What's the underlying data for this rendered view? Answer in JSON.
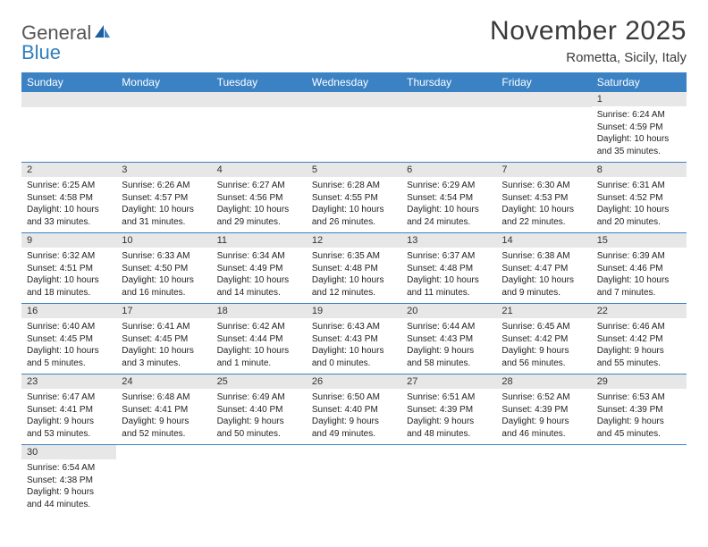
{
  "logo": {
    "text1": "General",
    "text2": "Blue"
  },
  "title": "November 2025",
  "location": "Rometta, Sicily, Italy",
  "colors": {
    "header_bg": "#3b82c4",
    "header_text": "#ffffff",
    "daynum_bg": "#e7e7e7",
    "row_divider": "#3b82c4",
    "logo_blue": "#2f7fbf",
    "logo_gray": "#555555",
    "text": "#222222",
    "background": "#ffffff"
  },
  "typography": {
    "title_fontsize": 30,
    "location_fontsize": 15,
    "header_fontsize": 12,
    "daynum_fontsize": 11,
    "detail_fontsize": 10
  },
  "days_of_week": [
    "Sunday",
    "Monday",
    "Tuesday",
    "Wednesday",
    "Thursday",
    "Friday",
    "Saturday"
  ],
  "weeks": [
    [
      null,
      null,
      null,
      null,
      null,
      null,
      {
        "n": "1",
        "sunrise": "Sunrise: 6:24 AM",
        "sunset": "Sunset: 4:59 PM",
        "daylight": "Daylight: 10 hours and 35 minutes."
      }
    ],
    [
      {
        "n": "2",
        "sunrise": "Sunrise: 6:25 AM",
        "sunset": "Sunset: 4:58 PM",
        "daylight": "Daylight: 10 hours and 33 minutes."
      },
      {
        "n": "3",
        "sunrise": "Sunrise: 6:26 AM",
        "sunset": "Sunset: 4:57 PM",
        "daylight": "Daylight: 10 hours and 31 minutes."
      },
      {
        "n": "4",
        "sunrise": "Sunrise: 6:27 AM",
        "sunset": "Sunset: 4:56 PM",
        "daylight": "Daylight: 10 hours and 29 minutes."
      },
      {
        "n": "5",
        "sunrise": "Sunrise: 6:28 AM",
        "sunset": "Sunset: 4:55 PM",
        "daylight": "Daylight: 10 hours and 26 minutes."
      },
      {
        "n": "6",
        "sunrise": "Sunrise: 6:29 AM",
        "sunset": "Sunset: 4:54 PM",
        "daylight": "Daylight: 10 hours and 24 minutes."
      },
      {
        "n": "7",
        "sunrise": "Sunrise: 6:30 AM",
        "sunset": "Sunset: 4:53 PM",
        "daylight": "Daylight: 10 hours and 22 minutes."
      },
      {
        "n": "8",
        "sunrise": "Sunrise: 6:31 AM",
        "sunset": "Sunset: 4:52 PM",
        "daylight": "Daylight: 10 hours and 20 minutes."
      }
    ],
    [
      {
        "n": "9",
        "sunrise": "Sunrise: 6:32 AM",
        "sunset": "Sunset: 4:51 PM",
        "daylight": "Daylight: 10 hours and 18 minutes."
      },
      {
        "n": "10",
        "sunrise": "Sunrise: 6:33 AM",
        "sunset": "Sunset: 4:50 PM",
        "daylight": "Daylight: 10 hours and 16 minutes."
      },
      {
        "n": "11",
        "sunrise": "Sunrise: 6:34 AM",
        "sunset": "Sunset: 4:49 PM",
        "daylight": "Daylight: 10 hours and 14 minutes."
      },
      {
        "n": "12",
        "sunrise": "Sunrise: 6:35 AM",
        "sunset": "Sunset: 4:48 PM",
        "daylight": "Daylight: 10 hours and 12 minutes."
      },
      {
        "n": "13",
        "sunrise": "Sunrise: 6:37 AM",
        "sunset": "Sunset: 4:48 PM",
        "daylight": "Daylight: 10 hours and 11 minutes."
      },
      {
        "n": "14",
        "sunrise": "Sunrise: 6:38 AM",
        "sunset": "Sunset: 4:47 PM",
        "daylight": "Daylight: 10 hours and 9 minutes."
      },
      {
        "n": "15",
        "sunrise": "Sunrise: 6:39 AM",
        "sunset": "Sunset: 4:46 PM",
        "daylight": "Daylight: 10 hours and 7 minutes."
      }
    ],
    [
      {
        "n": "16",
        "sunrise": "Sunrise: 6:40 AM",
        "sunset": "Sunset: 4:45 PM",
        "daylight": "Daylight: 10 hours and 5 minutes."
      },
      {
        "n": "17",
        "sunrise": "Sunrise: 6:41 AM",
        "sunset": "Sunset: 4:45 PM",
        "daylight": "Daylight: 10 hours and 3 minutes."
      },
      {
        "n": "18",
        "sunrise": "Sunrise: 6:42 AM",
        "sunset": "Sunset: 4:44 PM",
        "daylight": "Daylight: 10 hours and 1 minute."
      },
      {
        "n": "19",
        "sunrise": "Sunrise: 6:43 AM",
        "sunset": "Sunset: 4:43 PM",
        "daylight": "Daylight: 10 hours and 0 minutes."
      },
      {
        "n": "20",
        "sunrise": "Sunrise: 6:44 AM",
        "sunset": "Sunset: 4:43 PM",
        "daylight": "Daylight: 9 hours and 58 minutes."
      },
      {
        "n": "21",
        "sunrise": "Sunrise: 6:45 AM",
        "sunset": "Sunset: 4:42 PM",
        "daylight": "Daylight: 9 hours and 56 minutes."
      },
      {
        "n": "22",
        "sunrise": "Sunrise: 6:46 AM",
        "sunset": "Sunset: 4:42 PM",
        "daylight": "Daylight: 9 hours and 55 minutes."
      }
    ],
    [
      {
        "n": "23",
        "sunrise": "Sunrise: 6:47 AM",
        "sunset": "Sunset: 4:41 PM",
        "daylight": "Daylight: 9 hours and 53 minutes."
      },
      {
        "n": "24",
        "sunrise": "Sunrise: 6:48 AM",
        "sunset": "Sunset: 4:41 PM",
        "daylight": "Daylight: 9 hours and 52 minutes."
      },
      {
        "n": "25",
        "sunrise": "Sunrise: 6:49 AM",
        "sunset": "Sunset: 4:40 PM",
        "daylight": "Daylight: 9 hours and 50 minutes."
      },
      {
        "n": "26",
        "sunrise": "Sunrise: 6:50 AM",
        "sunset": "Sunset: 4:40 PM",
        "daylight": "Daylight: 9 hours and 49 minutes."
      },
      {
        "n": "27",
        "sunrise": "Sunrise: 6:51 AM",
        "sunset": "Sunset: 4:39 PM",
        "daylight": "Daylight: 9 hours and 48 minutes."
      },
      {
        "n": "28",
        "sunrise": "Sunrise: 6:52 AM",
        "sunset": "Sunset: 4:39 PM",
        "daylight": "Daylight: 9 hours and 46 minutes."
      },
      {
        "n": "29",
        "sunrise": "Sunrise: 6:53 AM",
        "sunset": "Sunset: 4:39 PM",
        "daylight": "Daylight: 9 hours and 45 minutes."
      }
    ],
    [
      {
        "n": "30",
        "sunrise": "Sunrise: 6:54 AM",
        "sunset": "Sunset: 4:38 PM",
        "daylight": "Daylight: 9 hours and 44 minutes."
      },
      null,
      null,
      null,
      null,
      null,
      null
    ]
  ]
}
